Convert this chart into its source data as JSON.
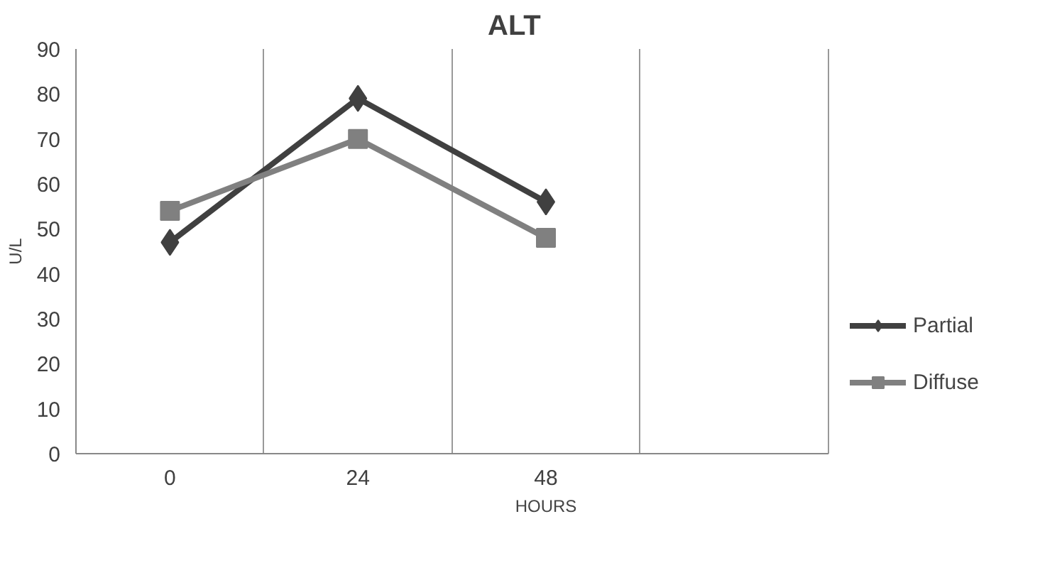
{
  "chart_data": {
    "type": "line",
    "title": "ALT",
    "xlabel": "HOURS",
    "ylabel": "U/L",
    "categories": [
      "0",
      "24",
      "48",
      null
    ],
    "series": [
      {
        "name": "Partial",
        "color": "#404040",
        "marker": "diamond",
        "values": [
          47,
          79,
          56,
          null
        ]
      },
      {
        "name": "Diffuse",
        "color": "#808080",
        "marker": "square",
        "values": [
          54,
          70,
          48,
          null
        ]
      }
    ],
    "ylim": [
      0,
      90
    ],
    "yticks": [
      0,
      10,
      20,
      30,
      40,
      50,
      60,
      70,
      80,
      90
    ],
    "grid": "x",
    "legend": "right",
    "line_style": "solid"
  }
}
